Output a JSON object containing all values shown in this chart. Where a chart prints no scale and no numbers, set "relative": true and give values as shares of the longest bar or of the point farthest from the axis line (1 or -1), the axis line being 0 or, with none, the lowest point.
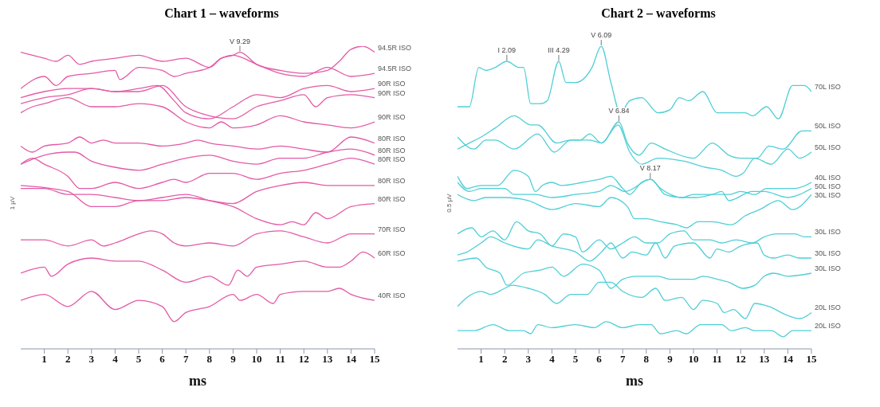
{
  "chart_data": [
    {
      "type": "line",
      "title": "Chart 1 – waveforms",
      "xlabel": "ms",
      "ylabel": "1 µV",
      "relative": true,
      "xlim": [
        0,
        15
      ],
      "xticks": [
        1,
        2,
        3,
        4,
        5,
        6,
        7,
        8,
        9,
        10,
        11,
        12,
        13,
        14,
        15
      ],
      "annotations": [
        {
          "text": "V 9.29",
          "x": 9.29,
          "y": 0.98
        }
      ],
      "series": [
        {
          "name": "94.5R ISO",
          "color": "#e45aa6",
          "x": [
            0,
            1,
            1.5,
            2,
            2.5,
            3,
            4,
            5,
            6,
            7,
            8,
            8.5,
            9,
            9.29,
            10,
            11,
            12,
            13,
            13.5,
            14,
            14.5,
            15
          ],
          "values": [
            0.98,
            0.96,
            0.95,
            0.97,
            0.94,
            0.95,
            0.96,
            0.97,
            0.95,
            0.96,
            0.93,
            0.96,
            0.97,
            0.98,
            0.94,
            0.92,
            0.91,
            0.92,
            0.95,
            0.99,
            1.0,
            0.98
          ]
        },
        {
          "name": "94.5R ISO",
          "color": "#e45aa6",
          "x": [
            0,
            1,
            1.5,
            2,
            3,
            4,
            4.2,
            5,
            6,
            6.5,
            7,
            8,
            8.5,
            9,
            10,
            11,
            12,
            13,
            14,
            15
          ],
          "values": [
            0.86,
            0.9,
            0.87,
            0.9,
            0.91,
            0.92,
            0.89,
            0.93,
            0.92,
            0.9,
            0.91,
            0.93,
            0.96,
            0.97,
            0.94,
            0.91,
            0.9,
            0.93,
            0.9,
            0.91
          ]
        },
        {
          "name": "90R ISO",
          "color": "#e45aa6",
          "x": [
            0,
            1,
            2,
            3,
            4,
            5,
            5.8,
            6.5,
            7,
            8,
            9,
            10,
            11,
            12,
            13,
            14,
            15
          ],
          "values": [
            0.83,
            0.85,
            0.86,
            0.86,
            0.85,
            0.86,
            0.87,
            0.82,
            0.78,
            0.76,
            0.8,
            0.84,
            0.83,
            0.86,
            0.87,
            0.85,
            0.86
          ]
        },
        {
          "name": "90R ISO",
          "color": "#e45aa6",
          "x": [
            0,
            1,
            2,
            3,
            4,
            5,
            6,
            7,
            8,
            9,
            10,
            11,
            12,
            12.5,
            13,
            14,
            15
          ],
          "values": [
            0.81,
            0.83,
            0.84,
            0.86,
            0.85,
            0.85,
            0.87,
            0.8,
            0.77,
            0.76,
            0.8,
            0.82,
            0.84,
            0.8,
            0.83,
            0.84,
            0.83
          ]
        },
        {
          "name": "90R ISO",
          "color": "#e45aa6",
          "x": [
            0,
            0.5,
            1,
            2,
            3,
            4,
            5,
            6,
            7,
            8,
            8.5,
            9,
            10,
            11,
            12,
            13,
            14,
            15
          ],
          "values": [
            0.78,
            0.8,
            0.81,
            0.83,
            0.8,
            0.8,
            0.81,
            0.8,
            0.75,
            0.73,
            0.75,
            0.73,
            0.74,
            0.77,
            0.75,
            0.74,
            0.73,
            0.75
          ]
        },
        {
          "name": "80R ISO",
          "color": "#e45aa6",
          "x": [
            0,
            0.5,
            1,
            2,
            2.5,
            3,
            3.5,
            4,
            5,
            6,
            7,
            7.5,
            8,
            9,
            10,
            11,
            12,
            13,
            14,
            15
          ],
          "values": [
            0.67,
            0.65,
            0.67,
            0.68,
            0.7,
            0.68,
            0.69,
            0.68,
            0.68,
            0.67,
            0.68,
            0.69,
            0.68,
            0.67,
            0.66,
            0.67,
            0.66,
            0.65,
            0.7,
            0.68
          ]
        },
        {
          "name": "80R ISO",
          "color": "#e45aa6",
          "x": [
            0,
            1,
            2,
            2.3,
            3,
            4,
            5,
            6,
            7,
            8,
            9,
            10,
            11,
            12,
            13,
            14,
            15
          ],
          "values": [
            0.61,
            0.64,
            0.65,
            0.65,
            0.62,
            0.6,
            0.59,
            0.61,
            0.63,
            0.64,
            0.62,
            0.61,
            0.63,
            0.63,
            0.65,
            0.66,
            0.64
          ]
        },
        {
          "name": "80R ISO",
          "color": "#e45aa6",
          "x": [
            0,
            0.5,
            1,
            2,
            2.5,
            3,
            4,
            5,
            6,
            6.5,
            7,
            8,
            9,
            10,
            11,
            12,
            13,
            14,
            15
          ],
          "values": [
            0.61,
            0.63,
            0.61,
            0.57,
            0.53,
            0.53,
            0.55,
            0.53,
            0.55,
            0.56,
            0.55,
            0.58,
            0.58,
            0.56,
            0.58,
            0.59,
            0.61,
            0.63,
            0.61
          ]
        },
        {
          "name": "80R ISO",
          "color": "#e45aa6",
          "x": [
            0,
            2,
            3,
            4,
            5,
            6,
            7,
            8,
            9,
            10,
            11,
            12,
            13,
            14,
            15
          ],
          "values": [
            0.54,
            0.52,
            0.47,
            0.47,
            0.49,
            0.49,
            0.5,
            0.49,
            0.48,
            0.52,
            0.54,
            0.55,
            0.54,
            0.54,
            0.54
          ]
        },
        {
          "name": "80R ISO",
          "color": "#e45aa6",
          "x": [
            0,
            1,
            2,
            3,
            4,
            5,
            6,
            7,
            8,
            9,
            10,
            11,
            11.5,
            12,
            12.5,
            13,
            14,
            15
          ],
          "values": [
            0.53,
            0.53,
            0.51,
            0.51,
            0.5,
            0.49,
            0.5,
            0.51,
            0.49,
            0.47,
            0.43,
            0.41,
            0.42,
            0.41,
            0.45,
            0.43,
            0.47,
            0.48
          ]
        },
        {
          "name": "70R ISO",
          "color": "#e45aa6",
          "x": [
            0,
            1,
            2,
            3,
            3.5,
            4,
            5,
            5.5,
            6,
            6.5,
            7,
            8,
            9,
            10,
            11,
            12,
            13,
            14,
            15
          ],
          "values": [
            0.36,
            0.36,
            0.34,
            0.36,
            0.34,
            0.35,
            0.38,
            0.39,
            0.38,
            0.35,
            0.34,
            0.35,
            0.34,
            0.38,
            0.39,
            0.37,
            0.35,
            0.38,
            0.38
          ]
        },
        {
          "name": "60R ISO",
          "color": "#e45aa6",
          "x": [
            0,
            1,
            1.3,
            2,
            3,
            4,
            5,
            6,
            7,
            8,
            8.8,
            9.2,
            9.6,
            10,
            11,
            12,
            13,
            13.5,
            14,
            14.5,
            15
          ],
          "values": [
            0.25,
            0.27,
            0.24,
            0.28,
            0.3,
            0.29,
            0.29,
            0.26,
            0.22,
            0.24,
            0.21,
            0.26,
            0.24,
            0.27,
            0.28,
            0.29,
            0.27,
            0.27,
            0.29,
            0.32,
            0.3
          ]
        },
        {
          "name": "40R ISO",
          "color": "#e45aa6",
          "x": [
            0,
            1,
            2,
            3,
            4,
            5,
            6,
            6.5,
            7,
            8,
            9,
            9.3,
            10,
            10.7,
            11,
            12,
            13,
            13.5,
            14,
            15
          ],
          "values": [
            0.16,
            0.18,
            0.14,
            0.19,
            0.13,
            0.16,
            0.14,
            0.09,
            0.12,
            0.14,
            0.18,
            0.16,
            0.18,
            0.15,
            0.18,
            0.19,
            0.19,
            0.2,
            0.18,
            0.16
          ]
        }
      ]
    },
    {
      "type": "line",
      "title": "Chart 2 – waveforms",
      "xlabel": "ms",
      "ylabel": "0.5 µV",
      "relative": true,
      "xlim": [
        0,
        15
      ],
      "xticks": [
        1,
        2,
        3,
        4,
        5,
        6,
        7,
        8,
        9,
        10,
        11,
        12,
        13,
        14,
        15
      ],
      "annotations": [
        {
          "text": "I 2.09",
          "x": 2.09,
          "y": 0.95
        },
        {
          "text": "III 4.29",
          "x": 4.29,
          "y": 0.95
        },
        {
          "text": "V 6.09",
          "x": 6.09,
          "y": 1.0
        },
        {
          "text": "V 6.84",
          "x": 6.84,
          "y": 0.75
        },
        {
          "text": "V 8.17",
          "x": 8.17,
          "y": 0.56
        }
      ],
      "series": [
        {
          "name": "70L ISO",
          "color": "#4fcfd6",
          "x": [
            0,
            0.5,
            0.9,
            1.2,
            1.6,
            2.09,
            2.6,
            2.8,
            3.1,
            3.5,
            3.8,
            4.29,
            4.6,
            5,
            5.7,
            6.09,
            6.5,
            6.9,
            7.3,
            7.8,
            8.5,
            9,
            9.4,
            9.8,
            10.4,
            11,
            11.5,
            12.2,
            12.5,
            13.1,
            13.6,
            14.2,
            14.7,
            15
          ],
          "values": [
            0.8,
            0.8,
            0.93,
            0.92,
            0.93,
            0.95,
            0.93,
            0.93,
            0.81,
            0.81,
            0.82,
            0.95,
            0.88,
            0.88,
            0.93,
            1.0,
            0.88,
            0.78,
            0.82,
            0.83,
            0.78,
            0.79,
            0.83,
            0.82,
            0.85,
            0.78,
            0.78,
            0.78,
            0.77,
            0.8,
            0.76,
            0.87,
            0.87,
            0.85
          ]
        },
        {
          "name": "50L ISO",
          "color": "#4fcfd6",
          "x": [
            0,
            0.5,
            1,
            1.6,
            2.4,
            3.1,
            3.4,
            4.2,
            4.8,
            5.6,
            6.1,
            6.84,
            7.2,
            7.7,
            8.2,
            8.8,
            10,
            10.8,
            11.5,
            12,
            12.7,
            13.2,
            13.8,
            14.6,
            15
          ],
          "values": [
            0.66,
            0.68,
            0.7,
            0.73,
            0.77,
            0.74,
            0.74,
            0.68,
            0.69,
            0.69,
            0.68,
            0.75,
            0.68,
            0.64,
            0.68,
            0.66,
            0.63,
            0.68,
            0.64,
            0.63,
            0.63,
            0.67,
            0.66,
            0.72,
            0.72
          ]
        },
        {
          "name": "50L ISO",
          "color": "#4fcfd6",
          "x": [
            0,
            0.7,
            1.2,
            1.6,
            2.4,
            3.4,
            4.1,
            4.8,
            5.2,
            5.6,
            6.1,
            6.8,
            7.3,
            7.8,
            8.5,
            9.6,
            10.5,
            11.2,
            11.8,
            12.1,
            12.6,
            13.3,
            14,
            14.5,
            15
          ],
          "values": [
            0.7,
            0.66,
            0.69,
            0.69,
            0.66,
            0.71,
            0.65,
            0.69,
            0.69,
            0.71,
            0.68,
            0.74,
            0.65,
            0.61,
            0.63,
            0.62,
            0.6,
            0.59,
            0.57,
            0.58,
            0.63,
            0.61,
            0.66,
            0.63,
            0.65
          ]
        },
        {
          "name": "40L ISO",
          "color": "#4fcfd6",
          "x": [
            0,
            0.4,
            1,
            1.7,
            2.4,
            3,
            3.3,
            3.6,
            4,
            4.4,
            5.3,
            6,
            6.5,
            7,
            7.3,
            7.8,
            8.17,
            8.6,
            9.5,
            10,
            11,
            11.5,
            12,
            12.6,
            13.1,
            13.5,
            14.3,
            15
          ],
          "values": [
            0.57,
            0.53,
            0.54,
            0.54,
            0.59,
            0.57,
            0.52,
            0.54,
            0.55,
            0.54,
            0.55,
            0.56,
            0.57,
            0.53,
            0.51,
            0.55,
            0.56,
            0.53,
            0.5,
            0.51,
            0.51,
            0.51,
            0.52,
            0.51,
            0.53,
            0.53,
            0.53,
            0.55
          ]
        },
        {
          "name": "50L ISO",
          "color": "#4fcfd6",
          "x": [
            0,
            0.5,
            1,
            2,
            2.4,
            3.3,
            4,
            5,
            6,
            6.5,
            7.1,
            8.2,
            8.8,
            9.5,
            10.1,
            10.8,
            11.2,
            11.5,
            12.5,
            13,
            14,
            14.5,
            15
          ],
          "values": [
            0.55,
            0.52,
            0.53,
            0.53,
            0.51,
            0.51,
            0.5,
            0.51,
            0.52,
            0.54,
            0.52,
            0.56,
            0.51,
            0.5,
            0.5,
            0.51,
            0.52,
            0.49,
            0.52,
            0.52,
            0.5,
            0.51,
            0.53
          ]
        },
        {
          "name": "30L ISO",
          "color": "#4fcfd6",
          "x": [
            0,
            0.7,
            1.2,
            2,
            3,
            4,
            5,
            6,
            6.5,
            7.2,
            7.5,
            8,
            8.6,
            9.3,
            9.7,
            10.2,
            10.8,
            11.6,
            12.2,
            12.8,
            13.6,
            14.2,
            15
          ],
          "values": [
            0.51,
            0.49,
            0.5,
            0.5,
            0.49,
            0.46,
            0.48,
            0.47,
            0.5,
            0.47,
            0.43,
            0.43,
            0.42,
            0.41,
            0.4,
            0.42,
            0.42,
            0.41,
            0.44,
            0.46,
            0.49,
            0.46,
            0.51
          ]
        },
        {
          "name": "30L ISO",
          "color": "#4fcfd6",
          "x": [
            0,
            0.6,
            1,
            1.5,
            2,
            2.5,
            3,
            3.5,
            4,
            4.5,
            5,
            5.3,
            6,
            6.5,
            7,
            7.5,
            8,
            8.5,
            9,
            9.6,
            10,
            10.7,
            11.2,
            11.8,
            12.5,
            13,
            13.5,
            14.3,
            14.7,
            15
          ],
          "values": [
            0.38,
            0.4,
            0.37,
            0.39,
            0.36,
            0.42,
            0.39,
            0.38,
            0.34,
            0.38,
            0.37,
            0.32,
            0.36,
            0.33,
            0.35,
            0.37,
            0.35,
            0.35,
            0.38,
            0.39,
            0.36,
            0.36,
            0.35,
            0.36,
            0.35,
            0.37,
            0.38,
            0.38,
            0.37,
            0.37
          ]
        },
        {
          "name": "30L ISO",
          "color": "#4fcfd6",
          "x": [
            0,
            0.4,
            1,
            1.4,
            2,
            3,
            3.4,
            4,
            5,
            5.6,
            6.1,
            6.5,
            7,
            7.4,
            8,
            8.4,
            8.8,
            9.2,
            10,
            10.7,
            11,
            11.5,
            12,
            12.7,
            13,
            13.4,
            14,
            14.5,
            15
          ],
          "values": [
            0.31,
            0.32,
            0.35,
            0.37,
            0.35,
            0.33,
            0.36,
            0.34,
            0.32,
            0.29,
            0.32,
            0.35,
            0.3,
            0.32,
            0.31,
            0.35,
            0.3,
            0.34,
            0.35,
            0.3,
            0.33,
            0.32,
            0.34,
            0.35,
            0.31,
            0.3,
            0.31,
            0.3,
            0.3
          ]
        },
        {
          "name": "30L ISO",
          "color": "#4fcfd6",
          "x": [
            0,
            0.8,
            1.2,
            1.8,
            2.1,
            2.8,
            3.5,
            4,
            4.5,
            5.3,
            6,
            6.5,
            7,
            7.6,
            8.5,
            9,
            10,
            10.4,
            11,
            11.5,
            12.1,
            12.6,
            13,
            13.4,
            14,
            15
          ],
          "values": [
            0.29,
            0.3,
            0.27,
            0.25,
            0.21,
            0.25,
            0.26,
            0.27,
            0.24,
            0.28,
            0.26,
            0.2,
            0.23,
            0.24,
            0.24,
            0.23,
            0.23,
            0.24,
            0.23,
            0.22,
            0.2,
            0.21,
            0.24,
            0.25,
            0.24,
            0.25
          ]
        },
        {
          "name": "20L ISO",
          "color": "#4fcfd6",
          "x": [
            0,
            0.4,
            1,
            1.4,
            2,
            2.3,
            3,
            3.7,
            4.2,
            4.8,
            5.5,
            6,
            6.5,
            7,
            7.8,
            8.4,
            8.8,
            9.5,
            10,
            10.4,
            11,
            11.3,
            11.7,
            12.2,
            12.6,
            13.2,
            14,
            14.5,
            15
          ],
          "values": [
            0.14,
            0.17,
            0.19,
            0.18,
            0.2,
            0.21,
            0.2,
            0.18,
            0.15,
            0.18,
            0.18,
            0.22,
            0.22,
            0.19,
            0.17,
            0.2,
            0.16,
            0.17,
            0.13,
            0.16,
            0.15,
            0.12,
            0.13,
            0.1,
            0.15,
            0.14,
            0.11,
            0.1,
            0.12
          ]
        },
        {
          "name": "20L ISO",
          "color": "#4fcfd6",
          "x": [
            0,
            0.7,
            1.5,
            2.2,
            2.8,
            3.1,
            3.4,
            4,
            5,
            5.8,
            6.3,
            7,
            7.7,
            8.2,
            8.6,
            9.3,
            9.7,
            10.3,
            11.2,
            11.6,
            12.2,
            12.6,
            13.3,
            13.8,
            14.2,
            14.7,
            15
          ],
          "values": [
            0.06,
            0.06,
            0.08,
            0.06,
            0.06,
            0.05,
            0.08,
            0.07,
            0.08,
            0.07,
            0.09,
            0.07,
            0.08,
            0.08,
            0.05,
            0.06,
            0.05,
            0.08,
            0.08,
            0.06,
            0.07,
            0.06,
            0.06,
            0.04,
            0.06,
            0.06,
            0.06
          ]
        }
      ]
    }
  ]
}
